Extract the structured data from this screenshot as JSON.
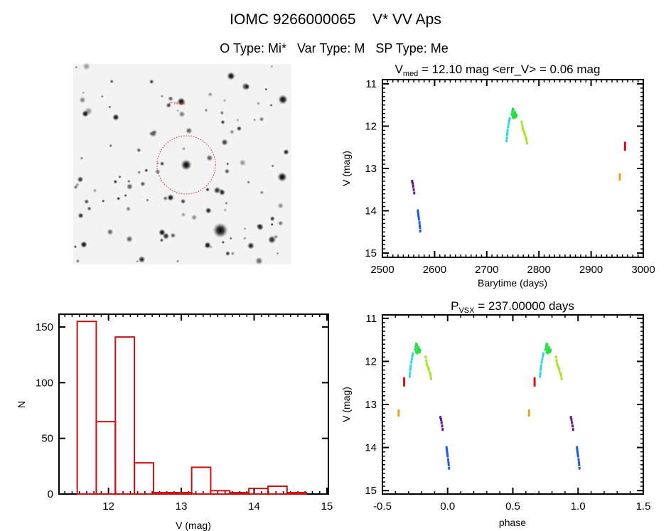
{
  "header": {
    "title": "IOMC 9266000065    V* VV Aps",
    "subtitle": "O Type: Mi*   Var Type: M   SP Type: Me"
  },
  "finder": {
    "target_label": "V* VV Aps"
  },
  "colors": {
    "hist": "#cc1111",
    "circle": "#cc2222",
    "purple": "#5b1a8c",
    "blue": "#1f5fd0",
    "cyan": "#2fd6e8",
    "green": "#22e040",
    "yellowgreen": "#a4e424",
    "orange": "#f0a020",
    "red": "#dd1111"
  },
  "chart_data": [
    {
      "id": "lightcurve",
      "type": "scatter",
      "title_main": "V",
      "title_sub": "med",
      "title_rest": " = 12.10 mag <err_V> = 0.06 mag",
      "xlabel": "Barytime (days)",
      "ylabel": "V (mag)",
      "xlim": [
        2500,
        3000
      ],
      "ylim": [
        10.9,
        15.1
      ],
      "y_inverted": true,
      "xticks": [
        2500,
        2600,
        2700,
        2800,
        2900,
        3000
      ],
      "yticks": [
        11,
        12,
        13,
        14,
        15
      ],
      "series": [
        {
          "name": "segment-1",
          "color": "purple",
          "points": [
            [
              2557,
              13.3
            ],
            [
              2558,
              13.35
            ],
            [
              2559,
              13.42
            ],
            [
              2560,
              13.5
            ],
            [
              2561,
              13.58
            ]
          ]
        },
        {
          "name": "segment-2",
          "color": "blue",
          "points": [
            [
              2568,
              14.0
            ],
            [
              2568.5,
              14.05
            ],
            [
              2569,
              14.1
            ],
            [
              2569.5,
              14.15
            ],
            [
              2570,
              14.2
            ],
            [
              2571,
              14.28
            ],
            [
              2571.5,
              14.35
            ],
            [
              2572,
              14.4
            ],
            [
              2572.5,
              14.48
            ]
          ]
        },
        {
          "name": "segment-3",
          "color": "cyan",
          "points": [
            [
              2738,
              12.35
            ],
            [
              2738.5,
              12.28
            ],
            [
              2739,
              12.2
            ],
            [
              2739.5,
              12.15
            ],
            [
              2740,
              12.1
            ],
            [
              2741,
              12.02
            ],
            [
              2742,
              11.95
            ],
            [
              2743,
              11.88
            ],
            [
              2744,
              11.82
            ]
          ]
        },
        {
          "name": "segment-4",
          "color": "green",
          "points": [
            [
              2748,
              11.72
            ],
            [
              2749,
              11.65
            ],
            [
              2750,
              11.6
            ],
            [
              2751,
              11.62
            ],
            [
              2752,
              11.7
            ],
            [
              2753,
              11.75
            ],
            [
              2754,
              11.68
            ],
            [
              2755,
              11.72
            ],
            [
              2756,
              11.78
            ],
            [
              2757,
              11.74
            ],
            [
              2750,
              11.78
            ],
            [
              2752,
              11.8
            ]
          ]
        },
        {
          "name": "segment-5",
          "color": "yellowgreen",
          "points": [
            [
              2767,
              11.9
            ],
            [
              2768,
              11.98
            ],
            [
              2769,
              12.05
            ],
            [
              2770,
              12.1
            ],
            [
              2772,
              12.15
            ],
            [
              2773,
              12.2
            ],
            [
              2775,
              12.27
            ],
            [
              2776,
              12.33
            ],
            [
              2777,
              12.4
            ]
          ]
        },
        {
          "name": "segment-6",
          "color": "orange",
          "points": [
            [
              2955,
              13.15
            ],
            [
              2955,
              13.2
            ],
            [
              2955,
              13.25
            ]
          ]
        },
        {
          "name": "segment-7",
          "color": "red",
          "points": [
            [
              2965,
              12.4
            ],
            [
              2965,
              12.45
            ],
            [
              2965,
              12.5
            ],
            [
              2965,
              12.55
            ]
          ]
        }
      ]
    },
    {
      "id": "histogram",
      "type": "bar",
      "xlabel": "V (mag)",
      "ylabel": "N",
      "xlim": [
        11.32,
        15.02
      ],
      "ylim": [
        0,
        161.5
      ],
      "xticks": [
        12,
        13,
        14,
        15
      ],
      "yticks": [
        0,
        50,
        100,
        150
      ],
      "bin_start": 11.57,
      "bin_width": 0.262,
      "values": [
        155,
        65,
        141,
        28,
        0,
        0,
        24,
        3,
        0,
        5,
        7,
        1
      ]
    },
    {
      "id": "phased",
      "type": "scatter",
      "title_main": "P",
      "title_sub": "VSX",
      "title_rest": " = 237.00000 days",
      "xlabel": "phase",
      "ylabel": "V (mag)",
      "period": 237.0,
      "epoch": 2570,
      "xlim": [
        -0.5,
        1.5
      ],
      "ylim": [
        10.92,
        15.08
      ],
      "y_inverted": true,
      "xticks": [
        -0.5,
        0.0,
        0.5,
        1.0,
        1.5
      ],
      "xtick_labels": [
        "-0.5",
        "0.0",
        "0.5",
        "1.0",
        "1.5"
      ],
      "yticks": [
        11,
        12,
        13,
        14,
        15
      ]
    }
  ]
}
